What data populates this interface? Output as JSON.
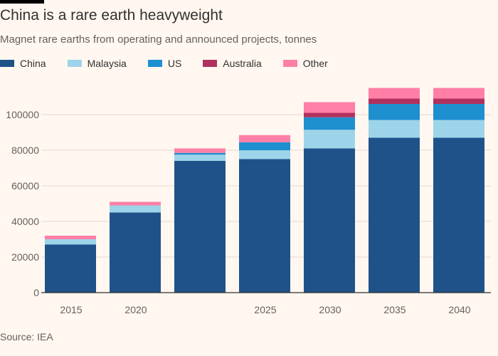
{
  "header": {
    "title": "China is a rare earth heavyweight",
    "subtitle": "Magnet rare earths from operating and announced projects, tonnes"
  },
  "footer": {
    "source": "Source: IEA"
  },
  "colors": {
    "background": "#fff7f0",
    "gridline": "#e6d9ce",
    "axis": "#33302e",
    "tick_text": "#66605c"
  },
  "chart_data": {
    "type": "bar",
    "stacked": true,
    "title": "China is a rare earth heavyweight",
    "subtitle": "Magnet rare earths from operating and announced projects, tonnes",
    "categories": [
      "2015",
      "2020",
      "",
      "2025",
      "2030",
      "2035",
      "2040"
    ],
    "xlabel": "",
    "ylabel": "",
    "ylim": [
      0,
      115000
    ],
    "yticks": [
      0,
      20000,
      40000,
      60000,
      80000,
      100000
    ],
    "ytick_labels": [
      "0",
      "20000",
      "40000",
      "60000",
      "80000",
      "100000"
    ],
    "grid": true,
    "legend_position": "top-left",
    "series": [
      {
        "name": "China",
        "color": "#1f5289",
        "values": [
          27000,
          45000,
          74000,
          75000,
          81000,
          87000,
          87000
        ]
      },
      {
        "name": "Malaysia",
        "color": "#9dd4e9",
        "values": [
          3000,
          4000,
          3500,
          5000,
          10500,
          10000,
          10000
        ]
      },
      {
        "name": "US",
        "color": "#1e8fcf",
        "values": [
          0,
          0,
          1000,
          4500,
          7000,
          9000,
          9000
        ]
      },
      {
        "name": "Australia",
        "color": "#b0315f",
        "values": [
          0,
          0,
          0,
          0,
          2500,
          3000,
          3000
        ]
      },
      {
        "name": "Other",
        "color": "#ff7fa6",
        "values": [
          2000,
          2000,
          2500,
          4000,
          6000,
          6000,
          6000
        ]
      }
    ]
  }
}
